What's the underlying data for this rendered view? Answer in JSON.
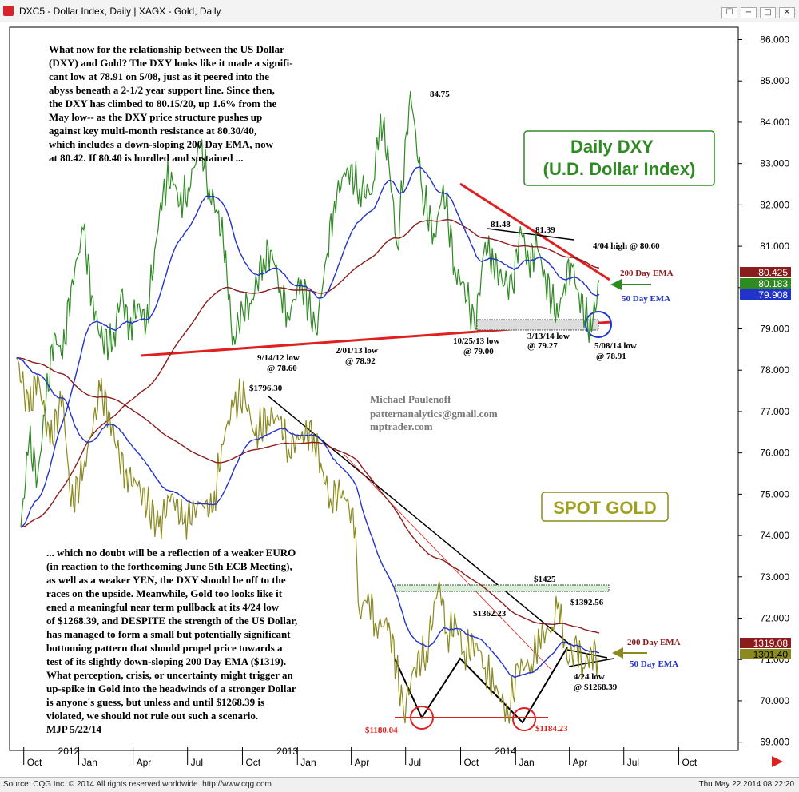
{
  "window": {
    "title": "DXC5 - Dollar Index, Daily   |   XAGX - Gold, Daily",
    "controls": [
      "☐",
      "−",
      "□",
      "✕"
    ]
  },
  "footer": {
    "source": "Source: CQG Inc. © 2014 All rights reserved worldwide.  http://www.cqg.com",
    "timestamp": "Thu May 22 2014 08:22:20"
  },
  "colors": {
    "dxy_price": "#2e8b22",
    "gold_price": "#8a8a1e",
    "ema50": "#2233cc",
    "ema200": "#8b1c1c",
    "trendline": "#e02020",
    "black_line": "#000000"
  },
  "commentary": {
    "top": [
      "What now for the relationship between the US Dollar",
      "(DXY) and Gold? The DXY looks like it made a signifi-",
      "cant low at 78.91 on 5/08, just as it peered into the",
      "abyss beneath a 2-1/2 year support line. Since then,",
      "the DXY has climbed to 80.15/20, up 1.6% from the",
      "May low-- as the DXY price structure pushes up",
      "against key multi-month resistance at 80.30/40,",
      "which includes a down-sloping 200 Day EMA, now",
      "at 80.42. If 80.40 is hurdled and sustained ..."
    ],
    "bottom": [
      "... which no doubt will be a reflection of a weaker EURO",
      "(in reaction to the forthcoming June 5th ECB Meeting),",
      "as well as a weaker YEN, the DXY should be off to the",
      "races on the upside. Meanwhile, Gold too looks like it",
      "ened a meaningful near term pullback at its 4/24 low",
      "of $1268.39, and DESPITE the strength of the US Dollar,",
      "has managed to form a small but potentially significant",
      "bottoming pattern that should propel price towards a",
      "test of its slightly down-sloping 200 Day EMA ($1319).",
      "What perception, crisis, or uncertainty might trigger an",
      "up-spike in Gold into the headwinds of a stronger Dollar",
      "is anyone's guess, but unless and until $1268.39 is",
      "violated, we should not rule out such a scenario.",
      "MJP  5/22/14"
    ]
  },
  "author": [
    "Michael Paulenoff",
    "patternanalytics@gmail.com",
    "mptrader.com"
  ],
  "boxes": {
    "dxy_title": [
      "Daily DXY",
      "(U.D. Dollar Index)"
    ],
    "gold_title": "SPOT GOLD"
  },
  "chart_data": {
    "type": "line",
    "x_axis": {
      "months": [
        "Oct",
        "Jan",
        "Apr",
        "Jul",
        "Oct",
        "Jan",
        "Apr",
        "Jul",
        "Oct",
        "Jan",
        "Apr",
        "Jul",
        "Oct"
      ],
      "years": [
        "2012",
        "2013",
        "2014"
      ]
    },
    "y_axis": {
      "ticks": [
        "86.000",
        "85.000",
        "84.000",
        "83.000",
        "82.000",
        "81.000",
        "80.000",
        "79.000",
        "78.000",
        "77.000",
        "76.000",
        "75.000",
        "74.000",
        "73.000",
        "72.000",
        "71.000",
        "70.000",
        "69.000"
      ],
      "ylim": [
        68.8,
        86.3
      ]
    },
    "series": [
      {
        "name": "Dollar Index (DXC5)",
        "unit": "index",
        "points": [
          [
            "2011-09-26",
            74.2
          ],
          [
            "2011-10-10",
            76.3
          ],
          [
            "2011-10-24",
            75.4
          ],
          [
            "2011-11-07",
            77.2
          ],
          [
            "2011-11-21",
            78.9
          ],
          [
            "2011-12-05",
            78.3
          ],
          [
            "2011-12-19",
            80.0
          ],
          [
            "2012-01-09",
            81.4
          ],
          [
            "2012-01-23",
            79.8
          ],
          [
            "2012-02-06",
            78.8
          ],
          [
            "2012-02-27",
            78.6
          ],
          [
            "2012-03-12",
            79.9
          ],
          [
            "2012-03-26",
            79.0
          ],
          [
            "2012-04-09",
            79.6
          ],
          [
            "2012-04-23",
            79.1
          ],
          [
            "2012-05-07",
            80.9
          ],
          [
            "2012-05-21",
            82.3
          ],
          [
            "2012-06-04",
            82.8
          ],
          [
            "2012-06-18",
            82.0
          ],
          [
            "2012-07-02",
            82.4
          ],
          [
            "2012-07-23",
            83.5
          ],
          [
            "2012-08-06",
            82.4
          ],
          [
            "2012-08-20",
            81.8
          ],
          [
            "2012-09-03",
            80.9
          ],
          [
            "2012-09-14",
            78.6
          ],
          [
            "2012-10-01",
            79.5
          ],
          [
            "2012-10-15",
            79.6
          ],
          [
            "2012-11-05",
            80.7
          ],
          [
            "2012-11-19",
            80.9
          ],
          [
            "2012-12-03",
            80.0
          ],
          [
            "2012-12-17",
            79.3
          ],
          [
            "2013-01-07",
            80.2
          ],
          [
            "2013-02-01",
            78.92
          ],
          [
            "2013-02-18",
            80.7
          ],
          [
            "2013-03-04",
            82.1
          ],
          [
            "2013-03-25",
            82.9
          ],
          [
            "2013-04-15",
            82.4
          ],
          [
            "2013-05-06",
            82.3
          ],
          [
            "2013-05-20",
            84.2
          ],
          [
            "2013-06-03",
            83.0
          ],
          [
            "2013-06-17",
            81.0
          ],
          [
            "2013-07-09",
            84.75
          ],
          [
            "2013-07-29",
            82.3
          ],
          [
            "2013-08-19",
            81.2
          ],
          [
            "2013-09-02",
            82.5
          ],
          [
            "2013-09-23",
            80.3
          ],
          [
            "2013-10-07",
            80.1
          ],
          [
            "2013-10-25",
            79.0
          ],
          [
            "2013-11-11",
            81.1
          ],
          [
            "2013-11-25",
            80.6
          ],
          [
            "2013-12-09",
            80.2
          ],
          [
            "2013-12-27",
            80.0
          ],
          [
            "2014-01-09",
            81.48
          ],
          [
            "2014-01-23",
            80.6
          ],
          [
            "2014-02-06",
            81.0
          ],
          [
            "2014-02-20",
            80.2
          ],
          [
            "2014-03-13",
            79.27
          ],
          [
            "2014-03-24",
            80.1
          ],
          [
            "2014-04-04",
            80.6
          ],
          [
            "2014-04-17",
            79.8
          ],
          [
            "2014-05-08",
            78.91
          ],
          [
            "2014-05-21",
            80.18
          ]
        ]
      },
      {
        "name": "Gold (XAGX)",
        "unit": "USD/oz",
        "axis_scale": "$1180.04 / $1184.23 lows ~ 69.4; $1796.30 high ~ 77.4",
        "points": [
          [
            "2011-09-19",
            78.3
          ],
          [
            "2011-10-10",
            77.0
          ],
          [
            "2011-10-24",
            77.9
          ],
          [
            "2011-11-14",
            76.2
          ],
          [
            "2011-12-05",
            77.4
          ],
          [
            "2011-12-19",
            74.7
          ],
          [
            "2012-01-09",
            75.6
          ],
          [
            "2012-02-06",
            77.5
          ],
          [
            "2012-02-20",
            77.0
          ],
          [
            "2012-03-05",
            76.1
          ],
          [
            "2012-03-19",
            75.5
          ],
          [
            "2012-04-09",
            75.2
          ],
          [
            "2012-05-14",
            74.2
          ],
          [
            "2012-06-04",
            75.0
          ],
          [
            "2012-06-25",
            74.3
          ],
          [
            "2012-07-23",
            74.8
          ],
          [
            "2012-08-13",
            74.6
          ],
          [
            "2012-08-27",
            76.2
          ],
          [
            "2012-09-17",
            77.2
          ],
          [
            "2012-10-05",
            77.4
          ],
          [
            "2012-10-22",
            76.4
          ],
          [
            "2012-11-12",
            76.9
          ],
          [
            "2012-12-03",
            76.8
          ],
          [
            "2012-12-17",
            76.1
          ],
          [
            "2013-01-07",
            76.4
          ],
          [
            "2013-01-28",
            76.5
          ],
          [
            "2013-02-11",
            75.6
          ],
          [
            "2013-02-25",
            74.9
          ],
          [
            "2013-03-18",
            75.1
          ],
          [
            "2013-04-08",
            74.2
          ],
          [
            "2013-04-15",
            72.1
          ],
          [
            "2013-04-29",
            72.6
          ],
          [
            "2013-05-13",
            71.8
          ],
          [
            "2013-06-03",
            71.9
          ],
          [
            "2013-06-28",
            69.7
          ],
          [
            "2013-07-15",
            70.8
          ],
          [
            "2013-08-05",
            71.2
          ],
          [
            "2013-08-26",
            72.9
          ],
          [
            "2013-09-09",
            71.6
          ],
          [
            "2013-09-23",
            71.9
          ],
          [
            "2013-10-07",
            71.2
          ],
          [
            "2013-10-28",
            71.4
          ],
          [
            "2013-11-11",
            70.8
          ],
          [
            "2013-11-25",
            70.4
          ],
          [
            "2013-12-19",
            69.7
          ],
          [
            "2014-01-06",
            70.8
          ],
          [
            "2014-01-27",
            70.9
          ],
          [
            "2014-02-10",
            71.5
          ],
          [
            "2014-03-03",
            71.8
          ],
          [
            "2014-03-14",
            72.4
          ],
          [
            "2014-03-28",
            71.0
          ],
          [
            "2014-04-14",
            71.3
          ],
          [
            "2014-04-24",
            70.8
          ],
          [
            "2014-05-08",
            71.2
          ],
          [
            "2014-05-21",
            71.0
          ]
        ]
      }
    ],
    "last_values": {
      "dxy_200ema": "80.425",
      "dxy_price": "80.183",
      "dxy_50ema": "79.908",
      "gold_200ema": "1319.08",
      "gold_price": "1301.40"
    },
    "annotations": {
      "dxy_high": "84.75",
      "dxy_high_a": "81.48",
      "dxy_high_b": "81.39",
      "apr_high": "4/04 high @ 80.60",
      "dxy_200ema_label": "200 Day EMA",
      "dxy_50ema_label": "50 Day EMA",
      "low_2012": [
        "9/14/12 low",
        "@ 78.60"
      ],
      "low_2013a": [
        "2/01/13 low",
        "@ 78.92"
      ],
      "low_2013b": [
        "10/25/13 low",
        "@ 79.00"
      ],
      "low_2014a": [
        "3/13/14 low",
        "@ 79.27"
      ],
      "low_2014b": [
        "5/08/14 low",
        "@ 78.91"
      ],
      "gold_high": "$1796.30",
      "gold_1425": "$1425",
      "gold_1362": "$1362.23",
      "gold_1392": "$1392.56",
      "gold_200ema_label": "200 Day EMA",
      "gold_50ema_label": "50 Day EMA",
      "gold_low_424": [
        "4/24 low",
        "@ $1268.39"
      ],
      "gold_low_a": "$1180.04",
      "gold_low_b": "$1184.23"
    }
  }
}
